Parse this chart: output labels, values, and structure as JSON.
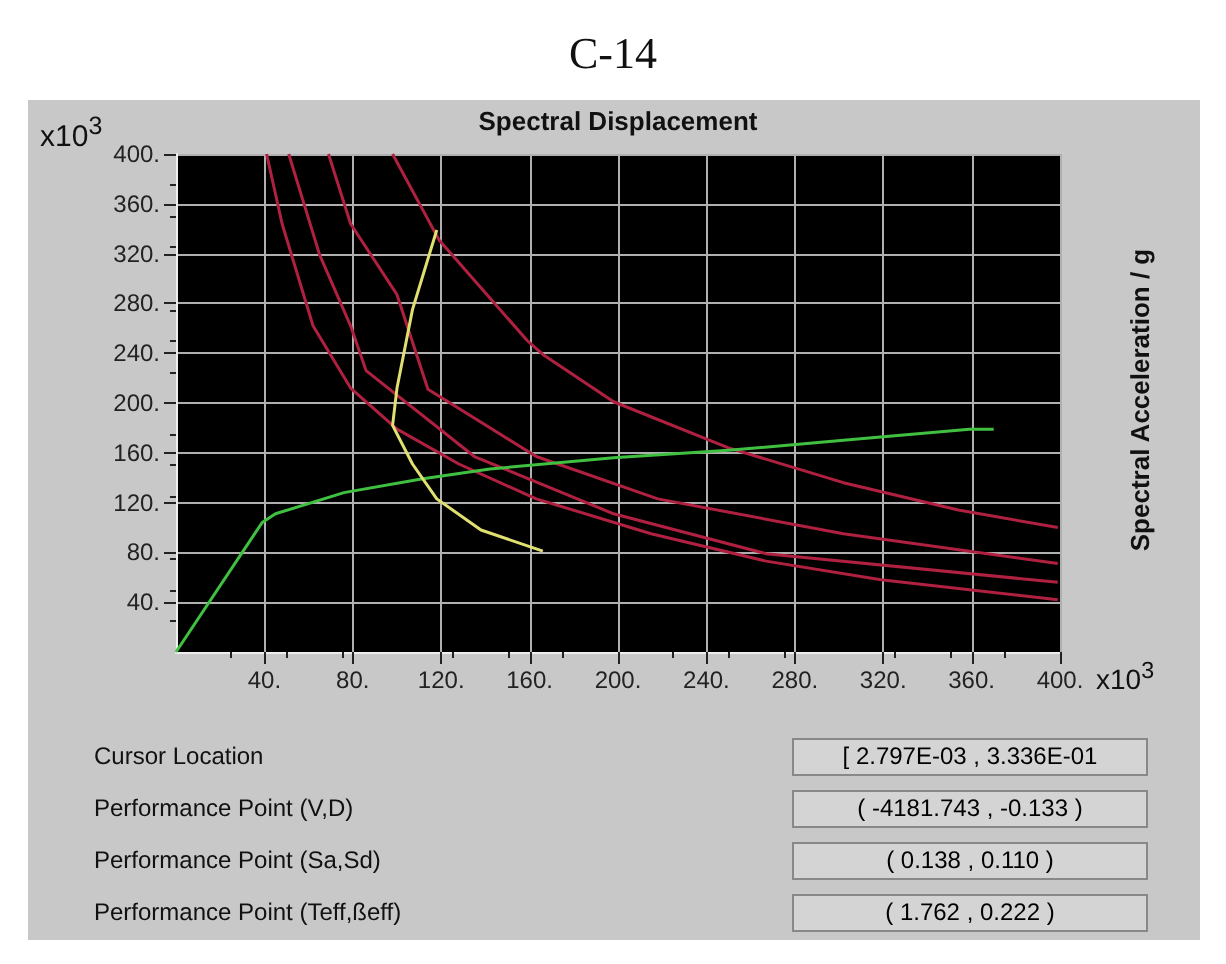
{
  "chart_data": {
    "type": "line",
    "title": "C-14",
    "xlabel": "Spectral Displacement",
    "ylabel": "Spectral Acceleration / g",
    "annotations": [
      "x10$^{3}$",
      "x10$^{3}$",
      "Cursor Location",
      "Performance Point (V,D)",
      "Performance Point (Sa,Sd)",
      "Performance Point (Teff,ßeff)",
      "[ 2.797E-03 , 3.336E-01",
      "( -4181.743 , -0.133 )",
      "( 0.138 , 0.110 )",
      "( 1.762 , 0.222 )"
    ],
    "xlim": [
      0,
      400
    ],
    "ylim": [
      0,
      400
    ],
    "xticks": [
      {
        "value": 40,
        "label": "40."
      },
      {
        "value": 80,
        "label": "80."
      },
      {
        "value": 120,
        "label": "120."
      },
      {
        "value": 160,
        "label": "160."
      },
      {
        "value": 200,
        "label": "200."
      },
      {
        "value": 240,
        "label": "240."
      },
      {
        "value": 280,
        "label": "280."
      },
      {
        "value": 320,
        "label": "320."
      },
      {
        "value": 360,
        "label": "360."
      },
      {
        "value": 400,
        "label": "400."
      }
    ],
    "yticks": [
      {
        "value": 40,
        "label": "40."
      },
      {
        "value": 80,
        "label": "80."
      },
      {
        "value": 120,
        "label": "120."
      },
      {
        "value": 160,
        "label": "160."
      },
      {
        "value": 200,
        "label": "200."
      },
      {
        "value": 240,
        "label": "240."
      },
      {
        "value": 280,
        "label": "280."
      },
      {
        "value": 320,
        "label": "320."
      },
      {
        "value": 360,
        "label": "360."
      },
      {
        "value": 400,
        "label": "400."
      }
    ],
    "grid": true,
    "marker": "none",
    "line_style": "solid",
    "series": [
      {
        "color": "#b02040",
        "x": [
          41,
          48,
          62,
          79,
          100,
          128,
          163,
          215,
          267,
          319,
          399
        ],
        "values": [
          400,
          344,
          262,
          212,
          179,
          151,
          123,
          95,
          73,
          58,
          42
        ]
      },
      {
        "color": "#b02040",
        "x": [
          51,
          65,
          79,
          86,
          135,
          198,
          267,
          399
        ],
        "values": [
          400,
          319,
          262,
          226,
          157,
          111,
          79,
          56
        ]
      },
      {
        "color": "#b02040",
        "x": [
          69,
          79,
          100,
          114,
          163,
          218,
          302,
          399
        ],
        "values": [
          400,
          344,
          287,
          211,
          157,
          123,
          95,
          71
        ]
      },
      {
        "color": "#b02040",
        "x": [
          98,
          119,
          159,
          166,
          198,
          250,
          302,
          354,
          399
        ],
        "values": [
          400,
          331,
          250,
          239,
          201,
          164,
          136,
          114,
          100
        ]
      },
      {
        "color": "#40c040",
        "x": [
          0,
          39,
          45,
          76,
          111,
          142,
          198,
          250,
          302,
          359,
          370
        ],
        "values": [
          0,
          104,
          111,
          128,
          139,
          147,
          156,
          162,
          170,
          179,
          179
        ]
      },
      {
        "color": "#e0e070",
        "x": [
          118,
          107,
          100,
          98,
          107,
          118,
          138,
          166
        ],
        "values": [
          339,
          275,
          212,
          182,
          151,
          123,
          98,
          81
        ]
      }
    ]
  }
}
